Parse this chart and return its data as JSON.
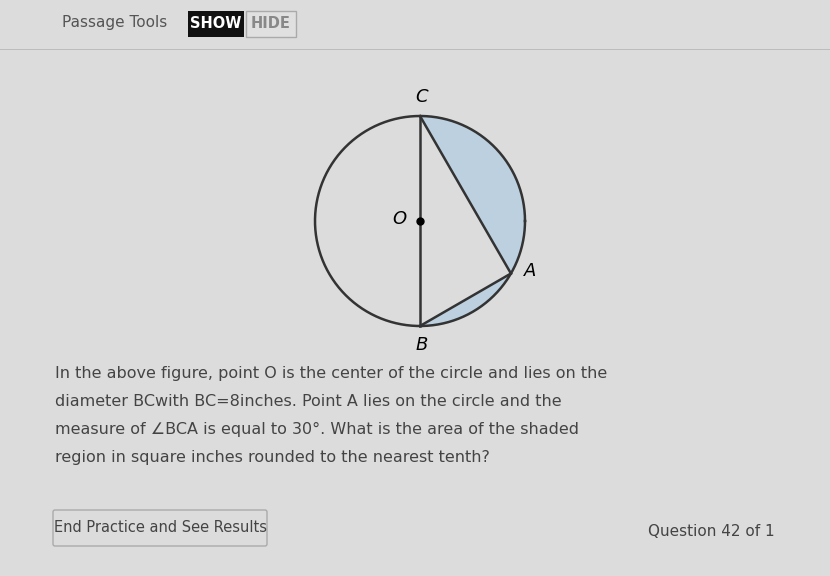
{
  "bg_color": "#dcdcdc",
  "circle_color": "#333333",
  "circle_linewidth": 1.8,
  "shaded_color": "#b8cfe0",
  "shaded_alpha": 0.85,
  "line_color": "#333333",
  "line_linewidth": 1.8,
  "dot_size": 5,
  "label_C": "C",
  "label_B": "B",
  "label_A": "A",
  "label_O": "O",
  "font_size_labels": 13,
  "text_color": "#444444",
  "question_line1": "In the above figure, point O is the center of the circle and lies on the",
  "question_line2": "diameter BCwith BC=8inches. Point A lies on the circle and the",
  "question_line3": "measure of ∠BCA is equal to 30°. What is the area of the shaded",
  "question_line4": "region in square inches rounded to the nearest tenth?",
  "button_text": "End Practice and See Results",
  "question_num_text": "Question 42 of 1",
  "header_text": "Passage Tools",
  "show_text": "SHOW",
  "hide_text": "HIDE",
  "toolbar_show_bg": "#111111",
  "toolbar_hide_bg": "#e0e0e0",
  "toolbar_hide_border": "#aaaaaa"
}
